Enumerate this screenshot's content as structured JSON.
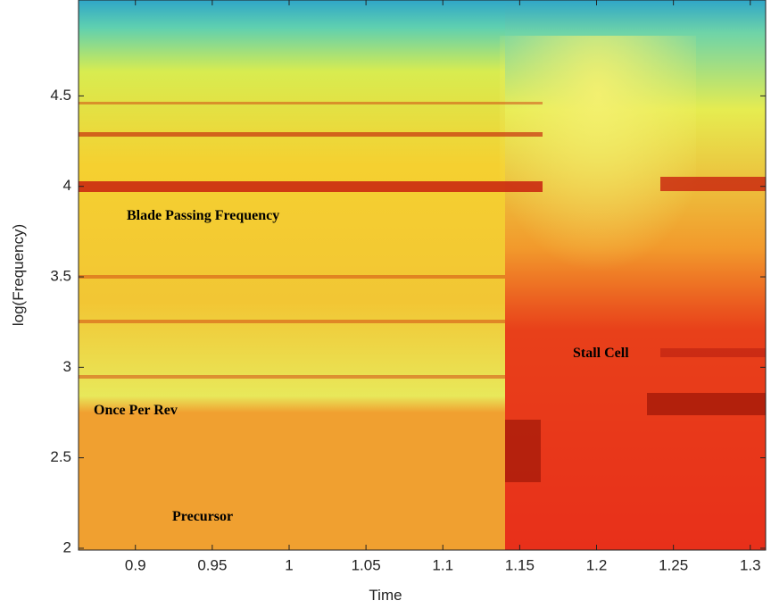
{
  "chart_data": {
    "type": "spectrogram",
    "xlabel": "Time",
    "ylabel": "log(Frequency)",
    "xlim": [
      0.863,
      1.31
    ],
    "ylim": [
      1.99,
      5.03
    ],
    "xticks": [
      0.9,
      0.95,
      1,
      1.05,
      1.1,
      1.15,
      1.2,
      1.25,
      1.3
    ],
    "yticks": [
      2,
      2.5,
      3,
      3.5,
      4,
      4.5
    ],
    "annotations": [
      "Blade Passing Frequency",
      "Once Per Rev",
      "Precursor",
      "Stall Cell"
    ]
  }
}
